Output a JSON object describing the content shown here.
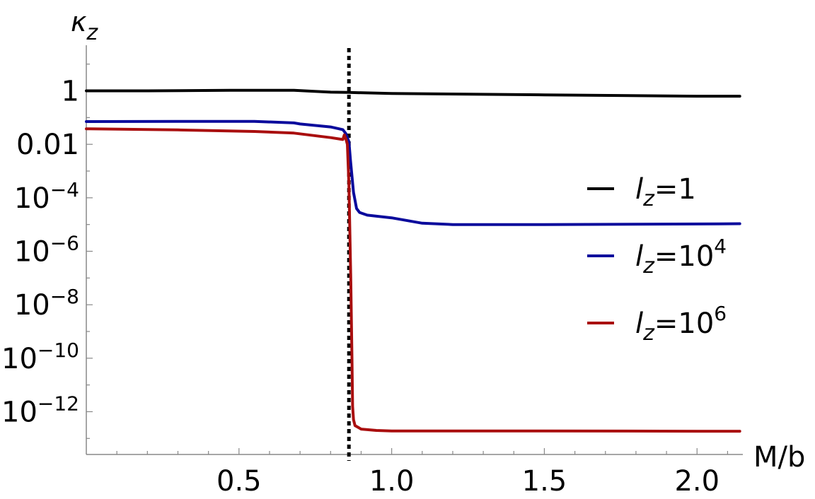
{
  "chart_data": {
    "type": "line",
    "title": "",
    "xlabel": "M/b",
    "ylabel": "κz",
    "ylabel_base": "κ",
    "ylabel_sub": "z",
    "xscale": "linear",
    "yscale": "log",
    "xlim": [
      0.0,
      2.15
    ],
    "ylim_exp": [
      -13.6,
      1.6
    ],
    "x_ticks": [
      {
        "value": 0.5,
        "label": "0.5"
      },
      {
        "value": 1.0,
        "label": "1.0"
      },
      {
        "value": 1.5,
        "label": "1.5"
      },
      {
        "value": 2.0,
        "label": "2.0"
      }
    ],
    "y_ticks": [
      {
        "exp": 0,
        "label": "1"
      },
      {
        "exp": -2,
        "label": "0.01"
      },
      {
        "exp": -4,
        "base": "10",
        "sup": "−4"
      },
      {
        "exp": -6,
        "base": "10",
        "sup": "−6"
      },
      {
        "exp": -8,
        "base": "10",
        "sup": "−8"
      },
      {
        "exp": -10,
        "base": "10",
        "sup": "−10"
      },
      {
        "exp": -12,
        "base": "10",
        "sup": "−12"
      }
    ],
    "threshold_line": {
      "x": 0.86,
      "style": "dotted",
      "color": "#000000"
    },
    "legend_position": "right",
    "grid": false,
    "series": [
      {
        "name": "lz=1",
        "legend": {
          "l": "l",
          "sub": "z",
          "eq": "=1",
          "sup": ""
        },
        "color": "#000000",
        "x": [
          0.0,
          0.2,
          0.47,
          0.68,
          0.8,
          0.86,
          1.0,
          1.5,
          2.0,
          2.14
        ],
        "log10_y": [
          0.0,
          0.0,
          0.02,
          0.02,
          -0.05,
          -0.06,
          -0.1,
          -0.15,
          -0.2,
          -0.2
        ]
      },
      {
        "name": "lz=10^4",
        "legend": {
          "l": "l",
          "sub": "z",
          "eq": "=10",
          "sup": "4"
        },
        "color": "#0a0a9c",
        "x": [
          0.0,
          0.3,
          0.55,
          0.68,
          0.7,
          0.8,
          0.84,
          0.85,
          0.86,
          0.865,
          0.875,
          0.885,
          0.895,
          0.92,
          1.0,
          1.1,
          1.2,
          1.5,
          2.0,
          2.14
        ],
        "log10_y": [
          -1.15,
          -1.14,
          -1.14,
          -1.2,
          -1.24,
          -1.35,
          -1.45,
          -1.6,
          -1.9,
          -2.6,
          -3.8,
          -4.4,
          -4.55,
          -4.65,
          -4.75,
          -4.95,
          -5.0,
          -5.0,
          -4.98,
          -4.97
        ]
      },
      {
        "name": "lz=10^6",
        "legend": {
          "l": "l",
          "sub": "z",
          "eq": "=10",
          "sup": "6"
        },
        "color": "#a90e0e",
        "x": [
          0.0,
          0.3,
          0.55,
          0.68,
          0.8,
          0.84,
          0.845,
          0.85,
          0.855,
          0.86,
          0.866,
          0.87,
          0.872,
          0.875,
          0.88,
          0.9,
          0.95,
          1.0,
          1.5,
          2.0,
          2.14
        ],
        "log10_y": [
          -1.42,
          -1.46,
          -1.52,
          -1.58,
          -1.75,
          -1.82,
          -1.65,
          -1.8,
          -2.0,
          -3.5,
          -7.0,
          -10.0,
          -11.8,
          -12.3,
          -12.52,
          -12.65,
          -12.7,
          -12.72,
          -12.72,
          -12.73,
          -12.73
        ]
      }
    ]
  }
}
